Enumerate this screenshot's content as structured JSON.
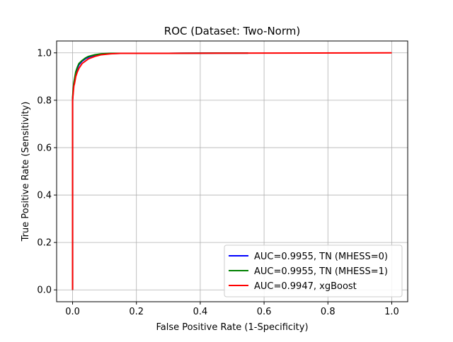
{
  "chart_data": {
    "type": "line",
    "title": "ROC (Dataset: Two-Norm)",
    "xlabel": "False Positive Rate (1-Specificity)",
    "ylabel": "True Positive Rate (Sensitivity)",
    "xlim": [
      -0.05,
      1.05
    ],
    "ylim": [
      -0.05,
      1.05
    ],
    "xticks": [
      0.0,
      0.2,
      0.4,
      0.6,
      0.8,
      1.0
    ],
    "yticks": [
      0.0,
      0.2,
      0.4,
      0.6,
      0.8,
      1.0
    ],
    "xtick_labels": [
      "0.0",
      "0.2",
      "0.4",
      "0.6",
      "0.8",
      "1.0"
    ],
    "ytick_labels": [
      "0.0",
      "0.2",
      "0.4",
      "0.6",
      "0.8",
      "1.0"
    ],
    "grid": true,
    "legend_position": "lower-right",
    "series": [
      {
        "name": "AUC=0.9955, TN (MHESS=0)",
        "color": "#0000ff",
        "x": [
          0,
          0,
          0.002,
          0.004,
          0.006,
          0.008,
          0.01,
          0.015,
          0.02,
          0.03,
          0.04,
          0.05,
          0.07,
          0.09,
          0.12,
          0.15,
          0.3,
          0.45,
          0.55
        ],
        "y": [
          0,
          0.8,
          0.84,
          0.87,
          0.885,
          0.9,
          0.915,
          0.935,
          0.95,
          0.965,
          0.975,
          0.982,
          0.99,
          0.995,
          0.997,
          0.998,
          0.998,
          0.999,
          0.999
        ]
      },
      {
        "name": "AUC=0.9955, TN (MHESS=1)",
        "color": "#008000",
        "x": [
          0,
          0,
          0.002,
          0.004,
          0.006,
          0.008,
          0.01,
          0.015,
          0.02,
          0.03,
          0.04,
          0.05,
          0.07,
          0.09,
          0.12,
          0.15,
          0.3,
          0.45,
          0.55
        ],
        "y": [
          0,
          0.81,
          0.85,
          0.875,
          0.89,
          0.905,
          0.92,
          0.94,
          0.955,
          0.968,
          0.978,
          0.985,
          0.992,
          0.996,
          0.998,
          0.998,
          0.998,
          0.999,
          0.999
        ]
      },
      {
        "name": "AUC=0.9947, xgBoost",
        "color": "#ff0000",
        "x": [
          0,
          0,
          0.002,
          0.004,
          0.006,
          0.008,
          0.01,
          0.015,
          0.02,
          0.025,
          0.03,
          0.04,
          0.05,
          0.07,
          0.09,
          0.12,
          0.15,
          0.3,
          0.6,
          1.0
        ],
        "y": [
          0,
          0.8,
          0.83,
          0.86,
          0.87,
          0.885,
          0.9,
          0.92,
          0.935,
          0.945,
          0.955,
          0.965,
          0.975,
          0.985,
          0.992,
          0.996,
          0.998,
          0.998,
          0.999,
          1.0
        ]
      }
    ]
  }
}
